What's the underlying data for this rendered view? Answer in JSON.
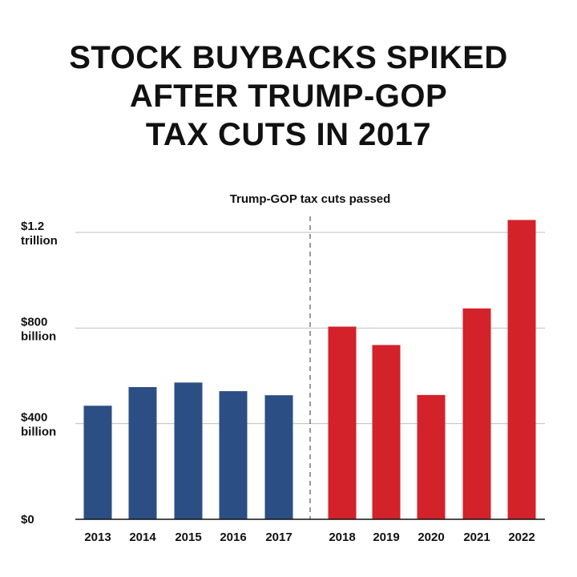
{
  "chart_data": {
    "type": "bar",
    "title_lines": [
      "STOCK BUYBACKS SPIKED",
      "AFTER TRUMP-GOP",
      "TAX CUTS IN 2017"
    ],
    "annotation": "Trump-GOP tax cuts passed",
    "categories": [
      "2013",
      "2014",
      "2015",
      "2016",
      "2017",
      "2018",
      "2019",
      "2020",
      "2021",
      "2022"
    ],
    "values": [
      475,
      553,
      572,
      536,
      519,
      806,
      729,
      520,
      882,
      1252
    ],
    "value_unit": "billion USD",
    "ylim": [
      0,
      1200
    ],
    "yticks": [
      {
        "value": 0,
        "lines": [
          "$0"
        ]
      },
      {
        "value": 400,
        "lines": [
          "$400",
          "billion"
        ]
      },
      {
        "value": 800,
        "lines": [
          "$800",
          "billion"
        ]
      },
      {
        "value": 1200,
        "lines": [
          "$1.2",
          "trillion"
        ]
      }
    ],
    "divider_after_category": "2017",
    "grid": true,
    "colors": {
      "before": "#2b4f84",
      "after": "#d3222a",
      "grid": "#bfbfbf",
      "axis": "#111111",
      "divider": "#333333"
    }
  }
}
